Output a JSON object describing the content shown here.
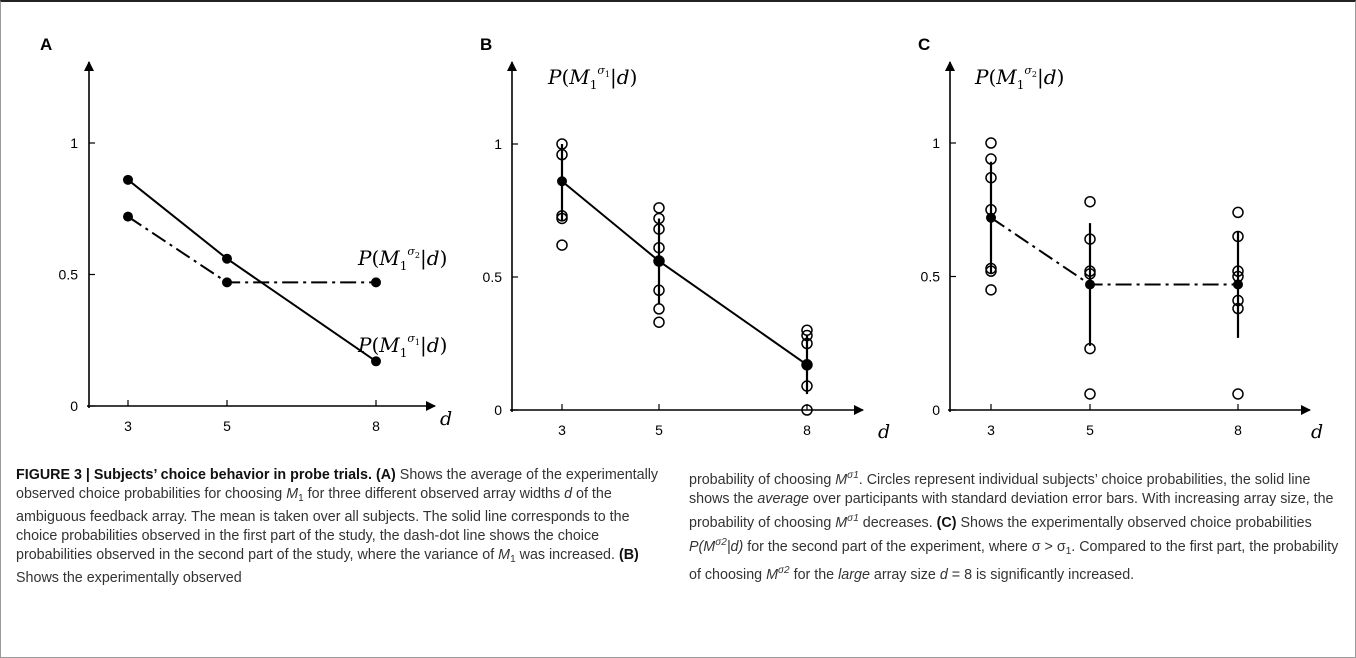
{
  "chart_data": [
    {
      "panel": "A",
      "type": "line",
      "x": [
        3,
        5,
        8
      ],
      "xticks": [
        "3",
        "5",
        "8"
      ],
      "yticks": [
        "0",
        "0.5",
        "1"
      ],
      "xlabel": "d",
      "ylim": [
        0,
        1.2
      ],
      "series": [
        {
          "name": "P(M1σ1|d)",
          "style": "solid",
          "values": [
            0.86,
            0.56,
            0.17
          ]
        },
        {
          "name": "P(M1σ2|d)",
          "style": "dashdot",
          "values": [
            0.72,
            0.47,
            0.47
          ]
        }
      ]
    },
    {
      "panel": "B",
      "type": "line",
      "title": "P(M1σ1|d)",
      "x": [
        3,
        5,
        8
      ],
      "xticks": [
        "3",
        "5",
        "8"
      ],
      "yticks": [
        "0",
        "0.5",
        "1"
      ],
      "xlabel": "d",
      "ylim": [
        0,
        1.2
      ],
      "series": [
        {
          "name": "average",
          "style": "solid",
          "values": [
            0.86,
            0.56,
            0.17
          ],
          "std": [
            0.15,
            0.16,
            0.11
          ]
        }
      ],
      "subjects": [
        {
          "x": 3,
          "values": [
            1.0,
            0.96,
            0.73,
            0.72,
            0.62
          ]
        },
        {
          "x": 5,
          "values": [
            0.76,
            0.72,
            0.68,
            0.61,
            0.56,
            0.45,
            0.38,
            0.33
          ]
        },
        {
          "x": 8,
          "values": [
            0.3,
            0.28,
            0.25,
            0.17,
            0.09,
            0.0
          ]
        }
      ]
    },
    {
      "panel": "C",
      "type": "line",
      "title": "P(M1σ2|d)",
      "x": [
        3,
        5,
        8
      ],
      "xticks": [
        "3",
        "5",
        "8"
      ],
      "yticks": [
        "0",
        "0.5",
        "1"
      ],
      "xlabel": "d",
      "ylim": [
        0,
        1.2
      ],
      "series": [
        {
          "name": "average",
          "style": "dashdot",
          "values": [
            0.72,
            0.47,
            0.47
          ],
          "std": [
            0.21,
            0.23,
            0.2
          ]
        }
      ],
      "subjects": [
        {
          "x": 3,
          "values": [
            1.0,
            0.94,
            0.87,
            0.75,
            0.53,
            0.52,
            0.45
          ]
        },
        {
          "x": 5,
          "values": [
            0.78,
            0.64,
            0.52,
            0.51,
            0.23,
            0.06
          ]
        },
        {
          "x": 8,
          "values": [
            0.74,
            0.65,
            0.52,
            0.5,
            0.41,
            0.38,
            0.06
          ]
        }
      ]
    }
  ],
  "panel_letters": {
    "a": "A",
    "b": "B",
    "c": "C"
  },
  "caption": {
    "figure_label": "FIGURE 3 | Subjects’ choice behavior in probe trials.",
    "seg_a_label": "(A)",
    "seg_a_1": " Shows the average of the experimentally observed choice probabilities for choosing ",
    "m": "M",
    "one": "1",
    "seg_a_2": " for three different observed array widths ",
    "d": "d",
    "seg_a_3": " of the ambiguous feedback array. The mean is taken over all subjects. The solid line corresponds to the choice probabilities observed in the first part of the study, the dash-dot line shows the choice probabilities observed in the second part of the study, where the variance of ",
    "seg_a_4": " was increased. ",
    "seg_b_label": "(B)",
    "seg_b_1": " Shows the experimentally observed",
    "seg_b_2": "probability of choosing ",
    "sigma1": "σ1",
    "seg_b_3": ". Circles represent individual subjects’ choice probabilities, the solid line shows the ",
    "average": "average",
    "seg_b_4": " over participants with standard deviation error bars. With increasing array size, the probability of choosing ",
    "seg_b_5": " decreases. ",
    "seg_c_label": "(C)",
    "seg_c_1": " Shows the experimentally observed choice probabilities ",
    "p_open": "P(",
    "sigma2": "σ2",
    "p_close": "|d)",
    "seg_c_2": " for the second part of the experiment, where σ",
    "two": "2",
    "seg_c_3": " > σ",
    "seg_c_4": ". Compared to the first part, the probability of choosing ",
    "seg_c_5": " for the ",
    "large": "large",
    "seg_c_6": " array size ",
    "seg_c_7": " = 8 is significantly increased."
  }
}
